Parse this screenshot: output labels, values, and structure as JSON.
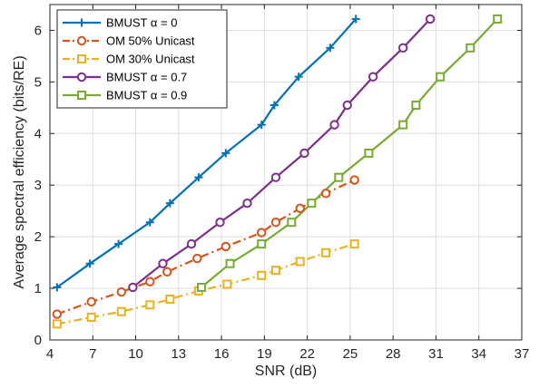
{
  "chart_data": {
    "type": "line",
    "title": "",
    "xlabel": "SNR (dB)",
    "ylabel": "Average spectral efficiency (bits/RE)",
    "xlim": [
      4,
      37
    ],
    "ylim": [
      0,
      6.5
    ],
    "xticks": [
      4,
      7,
      10,
      13,
      16,
      19,
      22,
      25,
      28,
      31,
      34,
      37
    ],
    "yticks": [
      0,
      1,
      2,
      3,
      4,
      5,
      6
    ],
    "grid": true,
    "legend_position": "top-left",
    "series": [
      {
        "name": "BMUST α = 0",
        "color": "#0072BD",
        "marker": "plus",
        "dash": "solid",
        "x": [
          4.5,
          6.8,
          8.8,
          11.0,
          12.4,
          14.4,
          16.3,
          18.8,
          19.7,
          21.4,
          23.6,
          25.4
        ],
        "y": [
          1.02,
          1.48,
          1.86,
          2.28,
          2.65,
          3.15,
          3.62,
          4.17,
          4.55,
          5.1,
          5.66,
          6.22
        ]
      },
      {
        "name": "OM 50% Unicast",
        "color": "#D95319",
        "marker": "circle",
        "dash": "dashdot",
        "x": [
          4.5,
          6.9,
          9.0,
          11.0,
          12.2,
          14.3,
          16.3,
          18.8,
          19.8,
          21.5,
          23.3,
          25.3
        ],
        "y": [
          0.5,
          0.74,
          0.93,
          1.13,
          1.32,
          1.58,
          1.81,
          2.08,
          2.28,
          2.55,
          2.84,
          3.1
        ]
      },
      {
        "name": "OM 30% Unicast",
        "color": "#EDB120",
        "marker": "square",
        "dash": "dashdot",
        "x": [
          4.5,
          6.9,
          9.0,
          11.0,
          12.4,
          14.4,
          16.4,
          18.8,
          19.8,
          21.5,
          23.3,
          25.3
        ],
        "y": [
          0.31,
          0.44,
          0.55,
          0.68,
          0.79,
          0.95,
          1.08,
          1.25,
          1.35,
          1.52,
          1.69,
          1.86
        ]
      },
      {
        "name": "BMUST α = 0.7",
        "color": "#7E2F8E",
        "marker": "circle",
        "dash": "solid",
        "x": [
          9.8,
          11.9,
          13.9,
          15.9,
          17.8,
          19.8,
          21.8,
          23.9,
          24.8,
          26.6,
          28.7,
          30.6
        ],
        "y": [
          1.02,
          1.48,
          1.86,
          2.28,
          2.65,
          3.15,
          3.62,
          4.17,
          4.55,
          5.1,
          5.66,
          6.22
        ]
      },
      {
        "name": "BMUST α = 0.9",
        "color": "#77AC30",
        "marker": "square",
        "dash": "solid",
        "x": [
          14.6,
          16.6,
          18.8,
          20.9,
          22.3,
          24.2,
          26.3,
          28.7,
          29.6,
          31.3,
          33.4,
          35.3
        ],
        "y": [
          1.02,
          1.48,
          1.86,
          2.28,
          2.65,
          3.15,
          3.62,
          4.17,
          4.55,
          5.1,
          5.66,
          6.22
        ]
      }
    ]
  }
}
